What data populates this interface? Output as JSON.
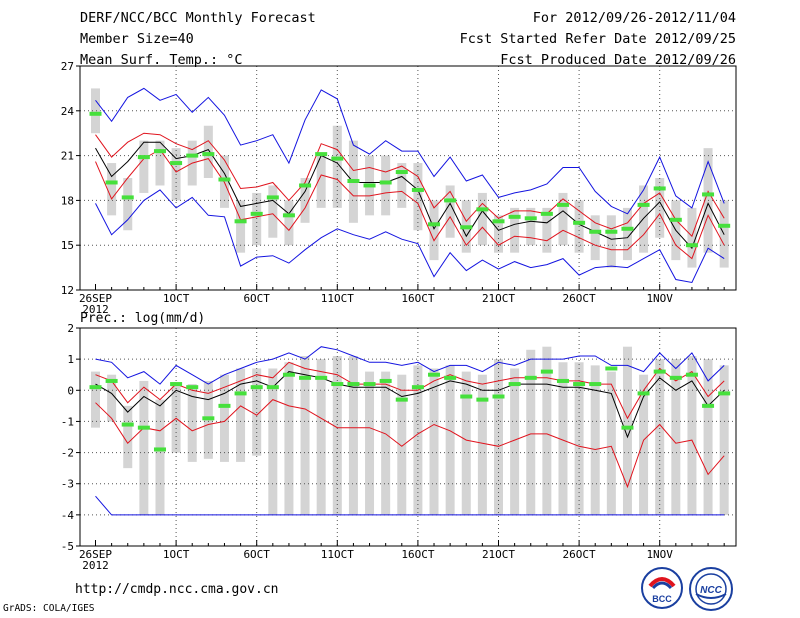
{
  "header": {
    "title": "DERF/NCC/BCC Monthly Forecast",
    "member_size": "Member Size=40",
    "variable": "Mean Surf. Temp.: °C",
    "period": "For 2012/09/26-2012/11/04",
    "started": "Fcst Started Refer Date 2012/09/25",
    "produced": "Fcst Produced Date 2012/09/26"
  },
  "footer": {
    "url": "http://cmdp.ncc.cma.gov.cn",
    "grads_credit": "GrADS: COLA/IGES",
    "logo_left_text": "BCC",
    "logo_right_text": "NCC"
  },
  "colors": {
    "bar": "#d4d4d4",
    "green": "#46e03c",
    "red": "#e0141e",
    "blue": "#1414e0",
    "mean": "#000000",
    "grid": "#555555"
  },
  "chart_data": [
    {
      "type": "line",
      "title": "Mean Surf. Temp.: °C",
      "ylabel": "°C",
      "ylim": [
        12,
        27
      ],
      "yticks": [
        "12",
        "15",
        "18",
        "21",
        "24",
        "27"
      ],
      "x_tick_labels": [
        {
          "day": 0,
          "label": "26SEP",
          "sub": "2012"
        },
        {
          "day": 5,
          "label": "1OCT"
        },
        {
          "day": 10,
          "label": "6OCT"
        },
        {
          "day": 15,
          "label": "11OCT"
        },
        {
          "day": 20,
          "label": "16OCT"
        },
        {
          "day": 25,
          "label": "21OCT"
        },
        {
          "day": 30,
          "label": "26OCT"
        },
        {
          "day": 35,
          "label": "1NOV"
        }
      ],
      "days": 40,
      "series": [
        {
          "name": "max",
          "color": "blue",
          "values": [
            24.7,
            23.3,
            24.9,
            25.5,
            24.7,
            25.1,
            23.9,
            24.9,
            23.7,
            21.7,
            22.0,
            22.4,
            20.5,
            23.4,
            25.4,
            24.8,
            21.7,
            21.1,
            22.0,
            21.3,
            21.3,
            19.6,
            20.9,
            19.3,
            19.7,
            18.2,
            18.5,
            18.7,
            19.1,
            20.2,
            20.2,
            18.6,
            17.6,
            17.1,
            18.7,
            20.9,
            18.3,
            17.5,
            20.6,
            17.8
          ]
        },
        {
          "name": "upper",
          "color": "red",
          "values": [
            22.4,
            20.9,
            21.9,
            22.5,
            22.4,
            21.8,
            21.4,
            22.0,
            20.7,
            18.8,
            18.9,
            19.2,
            18.0,
            19.2,
            21.8,
            21.4,
            20.0,
            20.2,
            19.9,
            20.3,
            19.6,
            17.5,
            18.6,
            16.6,
            17.8,
            16.8,
            17.3,
            17.3,
            17.1,
            18.1,
            17.3,
            16.5,
            16.1,
            16.5,
            17.8,
            18.5,
            16.7,
            15.6,
            18.6,
            16.8
          ]
        },
        {
          "name": "mean",
          "color": "mean",
          "values": [
            21.5,
            19.6,
            20.6,
            21.9,
            21.9,
            20.8,
            21.0,
            21.4,
            19.8,
            17.6,
            17.8,
            18.0,
            17.1,
            18.6,
            21.0,
            20.5,
            19.2,
            19.2,
            19.2,
            19.6,
            18.7,
            16.1,
            17.8,
            15.6,
            17.3,
            16.0,
            16.4,
            16.6,
            16.5,
            17.3,
            16.4,
            15.9,
            15.4,
            15.5,
            16.8,
            17.9,
            16.0,
            14.8,
            17.8,
            15.7
          ]
        },
        {
          "name": "lower",
          "color": "red",
          "values": [
            20.6,
            18.1,
            19.5,
            20.8,
            21.4,
            19.9,
            20.5,
            20.8,
            19.2,
            16.7,
            16.9,
            17.1,
            16.0,
            17.5,
            19.7,
            19.4,
            18.3,
            18.3,
            18.5,
            18.6,
            17.8,
            15.3,
            16.9,
            15.0,
            16.2,
            15.0,
            15.6,
            15.5,
            15.3,
            16.0,
            15.5,
            15.0,
            14.7,
            14.7,
            15.7,
            17.1,
            15.0,
            14.1,
            17.0,
            15.0
          ]
        },
        {
          "name": "min",
          "color": "blue",
          "values": [
            17.8,
            15.7,
            16.7,
            18.0,
            18.7,
            17.5,
            18.2,
            17.0,
            16.9,
            13.6,
            14.2,
            14.3,
            13.8,
            14.7,
            15.5,
            16.1,
            15.7,
            15.4,
            15.9,
            15.4,
            15.1,
            12.9,
            14.5,
            13.3,
            14.0,
            13.4,
            13.9,
            13.5,
            13.7,
            14.1,
            13.0,
            13.5,
            13.6,
            13.5,
            14.1,
            14.7,
            12.7,
            12.5,
            14.8,
            14.1
          ]
        }
      ],
      "boxes": {
        "low": [
          22.5,
          17.0,
          16.0,
          18.5,
          19.0,
          18.0,
          19.0,
          19.5,
          17.5,
          14.5,
          15.0,
          15.5,
          15.0,
          16.5,
          17.5,
          17.5,
          16.5,
          17.0,
          17.0,
          17.5,
          16.0,
          14.0,
          15.5,
          14.5,
          15.0,
          14.5,
          14.5,
          15.0,
          14.5,
          15.0,
          14.5,
          14.0,
          13.5,
          14.0,
          14.5,
          15.5,
          14.0,
          13.5,
          14.5,
          13.5
        ],
        "high": [
          25.5,
          20.5,
          19.5,
          22.0,
          22.0,
          21.5,
          22.0,
          23.0,
          21.0,
          18.0,
          18.5,
          19.0,
          18.0,
          19.5,
          21.0,
          23.0,
          22.0,
          21.0,
          21.0,
          20.5,
          20.5,
          18.0,
          19.0,
          18.0,
          18.5,
          17.0,
          17.5,
          17.5,
          17.5,
          18.5,
          18.0,
          17.0,
          17.0,
          17.5,
          19.0,
          19.5,
          18.0,
          17.5,
          21.5,
          18.0
        ]
      },
      "green_marks": [
        23.8,
        19.2,
        18.2,
        20.9,
        21.3,
        20.5,
        21.0,
        21.1,
        19.4,
        16.6,
        17.1,
        18.2,
        17.0,
        19.0,
        21.1,
        20.8,
        19.3,
        19.0,
        19.2,
        19.9,
        18.7,
        16.4,
        18.0,
        16.2,
        17.4,
        16.6,
        16.9,
        16.8,
        17.1,
        17.7,
        16.5,
        15.9,
        15.9,
        16.1,
        17.7,
        18.8,
        16.7,
        15.0,
        18.4,
        16.3
      ]
    },
    {
      "type": "line",
      "title": "Prec.: log(mm/d)",
      "ylabel": "log(mm/d)",
      "ylim": [
        -5,
        2
      ],
      "yticks": [
        "-5",
        "-4",
        "-3",
        "-2",
        "-1",
        "0",
        "1",
        "2"
      ],
      "x_tick_labels": [
        {
          "day": 0,
          "label": "26SEP",
          "sub": "2012"
        },
        {
          "day": 5,
          "label": "1OCT"
        },
        {
          "day": 10,
          "label": "6OCT"
        },
        {
          "day": 15,
          "label": "11OCT"
        },
        {
          "day": 20,
          "label": "16OCT"
        },
        {
          "day": 25,
          "label": "21OCT"
        },
        {
          "day": 30,
          "label": "26OCT"
        },
        {
          "day": 35,
          "label": "1NOV"
        }
      ],
      "days": 40,
      "series": [
        {
          "name": "max",
          "color": "blue",
          "values": [
            1.0,
            0.9,
            0.4,
            0.6,
            0.2,
            0.8,
            0.5,
            0.2,
            0.5,
            0.7,
            0.9,
            1.0,
            1.2,
            1.0,
            1.4,
            1.3,
            1.1,
            0.9,
            0.9,
            0.8,
            0.9,
            0.6,
            0.8,
            0.8,
            0.6,
            0.9,
            0.8,
            1.0,
            1.0,
            1.0,
            1.1,
            1.1,
            0.8,
            0.8,
            0.6,
            1.2,
            0.7,
            1.2,
            0.3,
            0.8
          ]
        },
        {
          "name": "upper",
          "color": "red",
          "values": [
            0.5,
            0.3,
            -0.4,
            0.1,
            -0.3,
            0.2,
            0.0,
            -0.1,
            0.1,
            0.3,
            0.5,
            0.4,
            0.9,
            0.7,
            0.6,
            0.5,
            0.2,
            0.2,
            0.2,
            0.0,
            0.0,
            0.3,
            0.5,
            0.3,
            0.2,
            0.3,
            0.4,
            0.4,
            0.4,
            0.3,
            0.3,
            0.2,
            0.2,
            -0.9,
            0.0,
            0.7,
            0.3,
            0.6,
            -0.2,
            0.3
          ]
        },
        {
          "name": "mean",
          "color": "mean",
          "values": [
            0.2,
            -0.1,
            -0.7,
            -0.2,
            -0.5,
            0.0,
            -0.2,
            -0.3,
            -0.1,
            0.2,
            0.3,
            0.1,
            0.6,
            0.5,
            0.4,
            0.2,
            0.1,
            0.1,
            0.1,
            -0.2,
            -0.1,
            0.1,
            0.3,
            0.2,
            0.0,
            0.0,
            0.2,
            0.2,
            0.2,
            0.1,
            0.1,
            0.0,
            -0.1,
            -1.5,
            -0.2,
            0.4,
            0.0,
            0.3,
            -0.5,
            0.0
          ]
        },
        {
          "name": "lower",
          "color": "red",
          "values": [
            -0.4,
            -0.9,
            -1.7,
            -1.2,
            -1.3,
            -0.9,
            -1.3,
            -1.1,
            -1.0,
            -0.5,
            -0.8,
            -0.3,
            -0.5,
            -0.6,
            -0.9,
            -1.2,
            -1.2,
            -1.2,
            -1.4,
            -1.8,
            -1.4,
            -1.1,
            -1.3,
            -1.6,
            -1.7,
            -1.8,
            -1.6,
            -1.4,
            -1.4,
            -1.6,
            -1.8,
            -1.9,
            -1.8,
            -3.1,
            -1.6,
            -1.1,
            -1.7,
            -1.6,
            -2.7,
            -2.1
          ]
        },
        {
          "name": "min",
          "color": "blue",
          "values": [
            -3.4,
            -4.0,
            -4.0,
            -4.0,
            -4.0,
            -4.0,
            -4.0,
            -4.0,
            -4.0,
            -4.0,
            -4.0,
            -4.0,
            -4.0,
            -4.0,
            -4.0,
            -4.0,
            -4.0,
            -4.0,
            -4.0,
            -4.0,
            -4.0,
            -4.0,
            -4.0,
            -4.0,
            -4.0,
            -4.0,
            -4.0,
            -4.0,
            -4.0,
            -4.0,
            -4.0,
            -4.0,
            -4.0,
            -4.0,
            -4.0,
            -4.0,
            -4.0,
            -4.0,
            -4.0,
            -4.0
          ]
        }
      ],
      "boxes": {
        "low": [
          -1.2,
          -1.0,
          -2.5,
          -4.0,
          -4.0,
          -2.0,
          -2.3,
          -2.2,
          -2.3,
          -2.3,
          -2.1,
          -4.0,
          -4.0,
          -4.0,
          -4.0,
          -4.0,
          -4.0,
          -4.0,
          -4.0,
          -4.0,
          -4.0,
          -4.0,
          -4.0,
          -4.0,
          -4.0,
          -4.0,
          -4.0,
          -4.0,
          -4.0,
          -4.0,
          -4.0,
          -4.0,
          -4.0,
          -4.0,
          -4.0,
          -4.0,
          -4.0,
          -4.0,
          -4.0,
          -4.0
        ],
        "high": [
          0.6,
          0.5,
          -0.5,
          0.3,
          -0.3,
          0.2,
          0.2,
          0.3,
          0.5,
          0.7,
          0.7,
          0.7,
          0.9,
          1.1,
          1.0,
          1.1,
          1.1,
          0.6,
          0.6,
          0.5,
          0.8,
          0.7,
          0.8,
          0.6,
          0.5,
          1.0,
          0.7,
          1.3,
          1.4,
          0.9,
          0.9,
          0.8,
          0.6,
          1.4,
          0.5,
          1.0,
          1.0,
          1.1,
          1.0,
          0.8
        ]
      },
      "green_marks": [
        0.1,
        0.3,
        -1.1,
        -1.2,
        -1.9,
        0.2,
        0.1,
        -0.9,
        -0.5,
        -0.1,
        0.1,
        0.1,
        0.5,
        0.4,
        0.4,
        0.2,
        0.2,
        0.2,
        0.3,
        -0.3,
        0.1,
        0.5,
        0.4,
        -0.2,
        -0.3,
        -0.2,
        0.2,
        0.4,
        0.6,
        0.3,
        0.2,
        0.2,
        0.7,
        -1.2,
        -0.1,
        0.6,
        0.4,
        0.5,
        -0.5,
        -0.1
      ]
    }
  ]
}
